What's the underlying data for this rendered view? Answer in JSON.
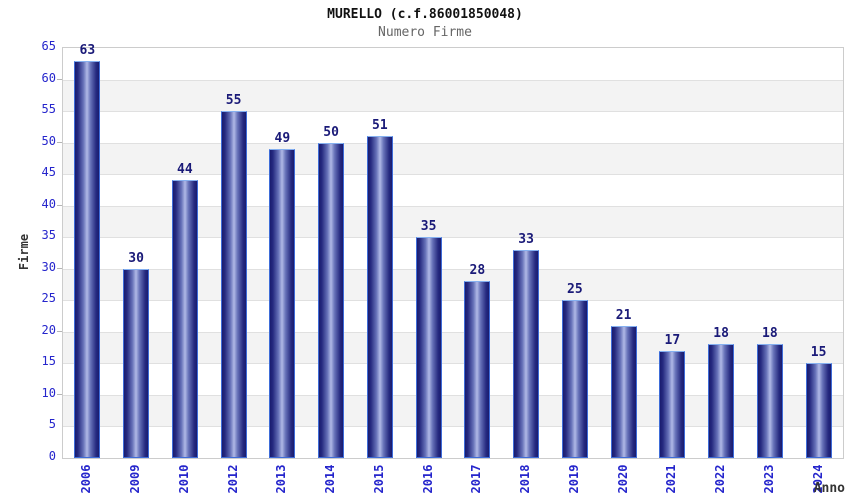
{
  "chart_data": {
    "type": "bar",
    "title": "MURELLO (c.f.86001850048)",
    "subtitle": "Numero Firme",
    "xlabel": "Anno",
    "ylabel": "Firme",
    "categories": [
      "2006",
      "2009",
      "2010",
      "2012",
      "2013",
      "2014",
      "2015",
      "2016",
      "2017",
      "2018",
      "2019",
      "2020",
      "2021",
      "2022",
      "2023",
      "2024"
    ],
    "values": [
      63,
      30,
      44,
      55,
      49,
      50,
      51,
      35,
      28,
      33,
      25,
      21,
      17,
      18,
      18,
      15
    ],
    "ylim": [
      0,
      65
    ],
    "ytick_step": 5,
    "major_tick_step": 10,
    "grid": "alternating-horizontal-bands",
    "legend": "none",
    "colors": {
      "bar_edge": "#1a1c6e",
      "bar_dark": "#262a80",
      "bar_mid": "#6671b8",
      "bar_center": "#b0b9e6",
      "bar_border": "#3e6cd8",
      "bar_border_top": "#85b0f0",
      "axis_text": "#2525cc",
      "value_label": "#1a1a78",
      "band_white": "#ffffff",
      "band_gray": "#f3f3f3",
      "grid_line": "#e0e0e0",
      "plot_border": "#cccccc",
      "title_text": "#111111",
      "subtitle_text": "#666666",
      "axis_title_text": "#333333"
    }
  }
}
